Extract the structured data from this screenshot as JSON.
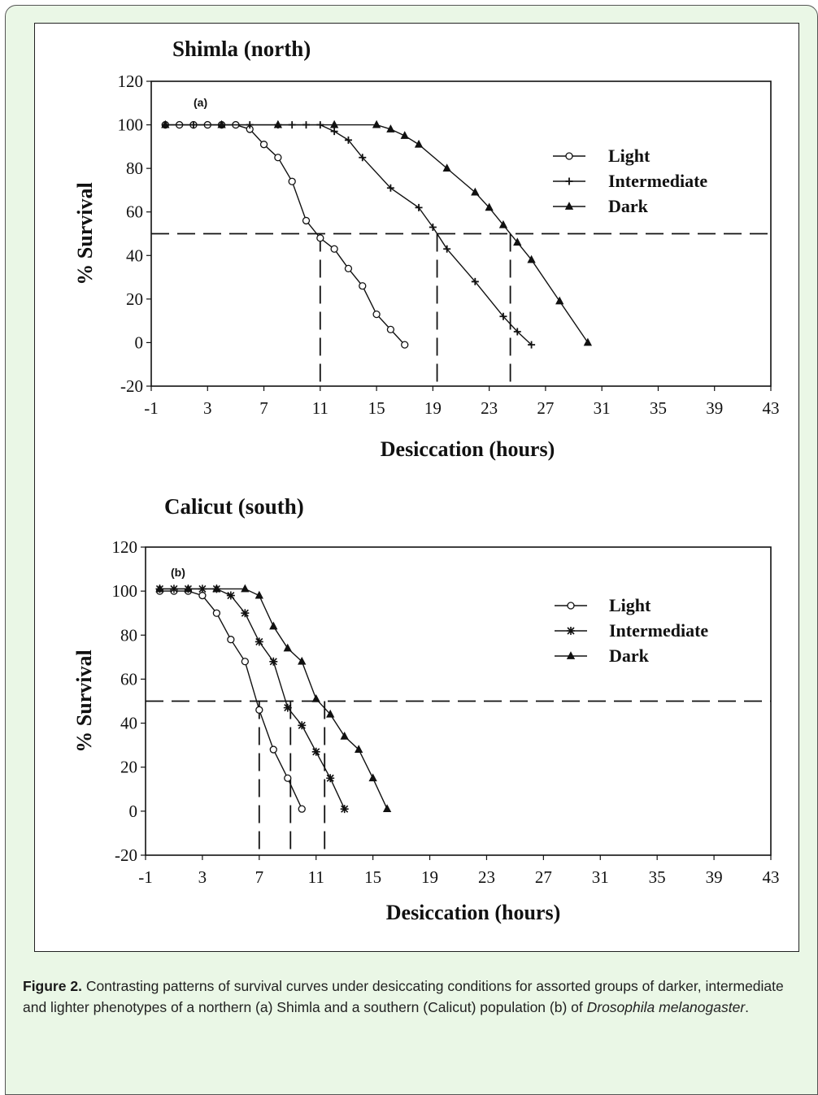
{
  "caption": {
    "label": "Figure 2.",
    "text": "Contrasting patterns of survival curves under desiccating conditions for assorted groups of darker, intermediate and lighter phenotypes of a northern (a) Shimla and a southern (Calicut) population (b) of ",
    "species": "Drosophila melanogaster",
    "end": "."
  },
  "chart_data": [
    {
      "type": "line",
      "title": "Shimla (north)",
      "panel_tag": "(a)",
      "xlabel": "Desiccation (hours)",
      "ylabel": "% Survival",
      "xlim": [
        -1,
        43
      ],
      "ylim": [
        -20,
        120
      ],
      "xticks": [
        -1,
        3,
        7,
        11,
        15,
        19,
        23,
        27,
        31,
        35,
        39,
        43
      ],
      "yticks": [
        -20,
        0,
        20,
        40,
        60,
        80,
        100,
        120
      ],
      "grid": false,
      "legend_position": "top-right",
      "threshold_y": 50,
      "threshold_x": [
        11,
        19.3,
        24.5
      ],
      "series": [
        {
          "name": "Light",
          "marker": "open-circle",
          "x": [
            0,
            1,
            2,
            3,
            4,
            5,
            6,
            7,
            8,
            9,
            10,
            11,
            12,
            13,
            14,
            15,
            16,
            17
          ],
          "y": [
            100,
            100,
            100,
            100,
            100,
            100,
            98,
            91,
            85,
            74,
            56,
            48,
            43,
            34,
            26,
            13,
            6,
            -1
          ]
        },
        {
          "name": "Intermediate",
          "marker": "plus",
          "x": [
            0,
            2,
            4,
            6,
            8,
            9,
            10,
            11,
            12,
            13,
            14,
            16,
            18,
            19,
            20,
            22,
            24,
            25,
            26
          ],
          "y": [
            100,
            100,
            100,
            100,
            100,
            100,
            100,
            100,
            97,
            93,
            85,
            71,
            62,
            53,
            43,
            28,
            12,
            5,
            -1
          ]
        },
        {
          "name": "Dark",
          "marker": "triangle",
          "x": [
            0,
            4,
            8,
            12,
            15,
            16,
            17,
            18,
            20,
            22,
            23,
            24,
            25,
            26,
            28,
            30
          ],
          "y": [
            100,
            100,
            100,
            100,
            100,
            98,
            95,
            91,
            80,
            69,
            62,
            54,
            46,
            38,
            19,
            0
          ]
        }
      ]
    },
    {
      "type": "line",
      "title": "Calicut (south)",
      "panel_tag": "(b)",
      "xlabel": "Desiccation (hours)",
      "ylabel": "% Survival",
      "xlim": [
        -1,
        43
      ],
      "ylim": [
        -20,
        120
      ],
      "xticks": [
        -1,
        3,
        7,
        11,
        15,
        19,
        23,
        27,
        31,
        35,
        39,
        43
      ],
      "yticks": [
        -20,
        0,
        20,
        40,
        60,
        80,
        100,
        120
      ],
      "grid": false,
      "legend_position": "top-right",
      "threshold_y": 50,
      "threshold_x": [
        7,
        9.2,
        11.6
      ],
      "series": [
        {
          "name": "Light",
          "marker": "open-circle",
          "x": [
            0,
            1,
            2,
            3,
            4,
            5,
            6,
            7,
            8,
            9,
            10
          ],
          "y": [
            100,
            100,
            100,
            98,
            90,
            78,
            68,
            46,
            28,
            15,
            1
          ]
        },
        {
          "name": "Intermediate",
          "marker": "asterisk",
          "x": [
            0,
            1,
            2,
            3,
            4,
            5,
            6,
            7,
            8,
            9,
            10,
            11,
            12,
            13
          ],
          "y": [
            101,
            101,
            101,
            101,
            101,
            98,
            90,
            77,
            68,
            47,
            39,
            27,
            15,
            1
          ]
        },
        {
          "name": "Dark",
          "marker": "triangle",
          "x": [
            0,
            2,
            4,
            6,
            7,
            8,
            9,
            10,
            11,
            12,
            13,
            14,
            15,
            16
          ],
          "y": [
            101,
            101,
            101,
            101,
            98,
            84,
            74,
            68,
            51,
            44,
            34,
            28,
            15,
            1
          ]
        }
      ]
    }
  ]
}
